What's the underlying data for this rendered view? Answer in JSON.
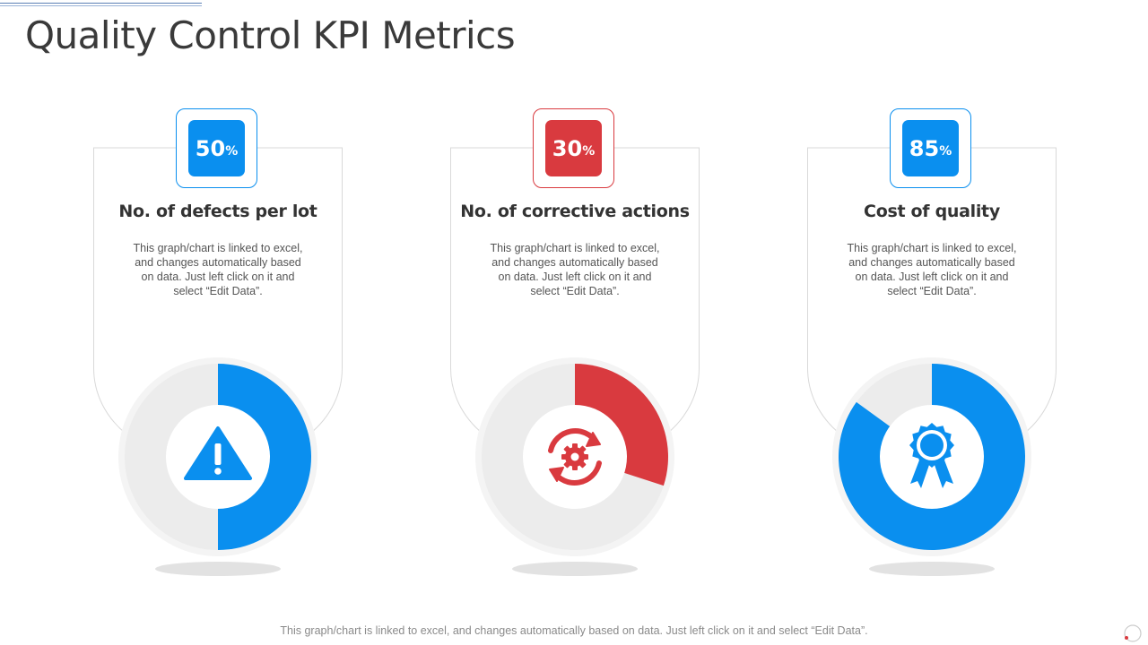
{
  "page": {
    "title": "Quality Control KPI Metrics",
    "footer": "This graph/chart is linked to excel, and changes automatically based on data. Just left click on it and select “Edit Data”."
  },
  "chart_data": [
    {
      "type": "pie",
      "title": "No. of defects per lot",
      "label": "50",
      "unit": "%",
      "value": 50,
      "description": "This graph/chart is linked to excel, and changes automatically based on data. Just left click on it and select “Edit Data”.",
      "color": "#0a8fef",
      "icon": "warning-triangle-icon"
    },
    {
      "type": "pie",
      "title": "No. of corrective actions",
      "label": "30",
      "unit": "%",
      "value": 30,
      "description": "This graph/chart is linked to excel, and changes automatically based on data. Just left click on it and select “Edit Data”.",
      "color": "#d93a3f",
      "icon": "gear-refresh-icon"
    },
    {
      "type": "pie",
      "title": "Cost of quality",
      "label": "85",
      "unit": "%",
      "value": 85,
      "description": "This graph/chart is linked to excel, and changes automatically based on data. Just left click on it and select “Edit Data”.",
      "color": "#0a8fef",
      "icon": "award-ribbon-icon"
    }
  ],
  "colors": {
    "track": "#ececec",
    "frame": "#d9d9d9"
  }
}
